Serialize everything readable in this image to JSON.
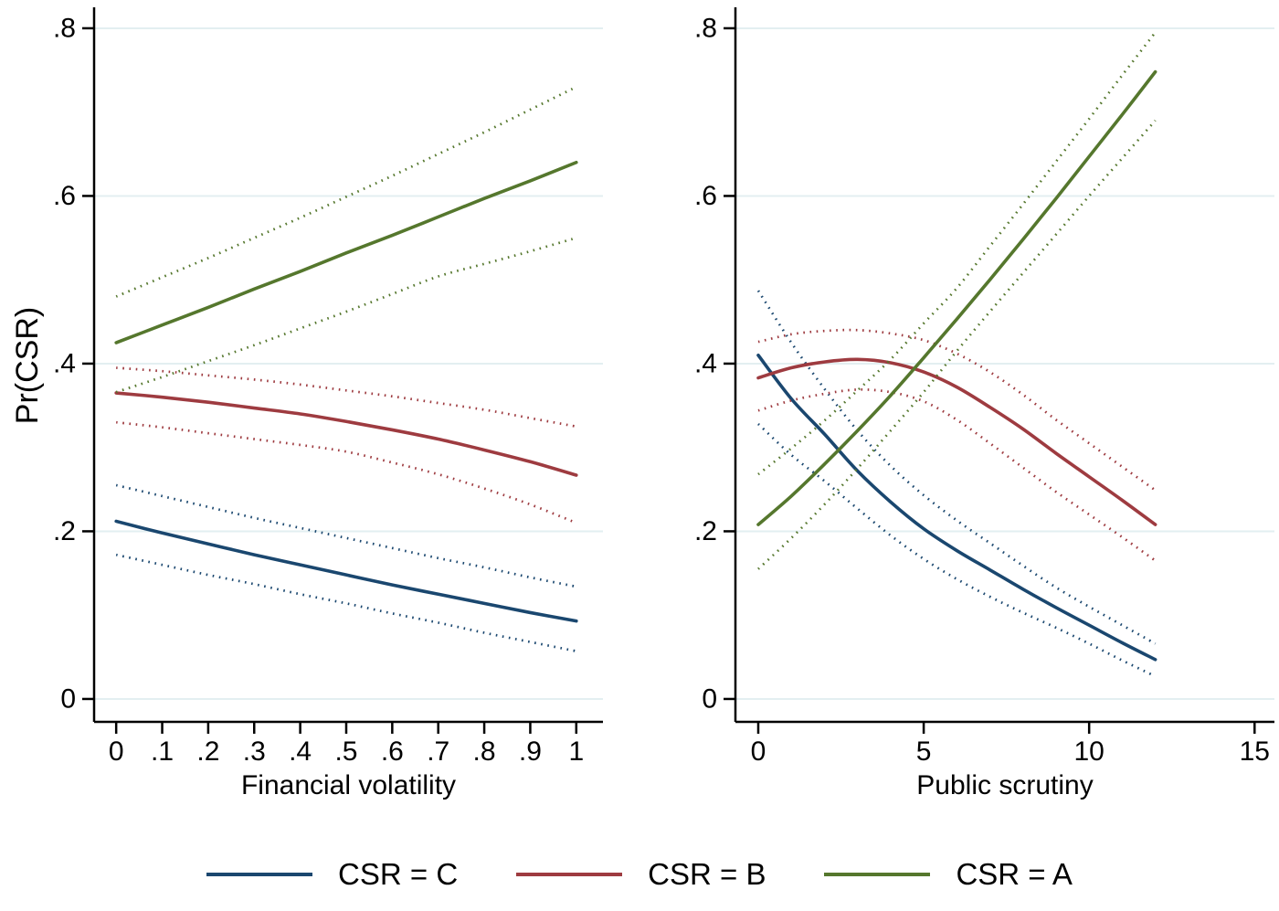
{
  "ylabel": "Pr(CSR)",
  "legend": {
    "position": "bottom-center",
    "items": [
      {
        "label": "CSR = C",
        "color": "#1a476f"
      },
      {
        "label": "CSR = B",
        "color": "#9e3b40"
      },
      {
        "label": "CSR = A",
        "color": "#55772d"
      }
    ]
  },
  "style": {
    "grid_color": "#e3eff1",
    "axis_color": "#000000",
    "background": "#ffffff"
  },
  "chart_data": [
    {
      "type": "line",
      "title": "",
      "xlabel": "Financial volatility",
      "ylabel": "Pr(CSR)",
      "xlim": [
        -0.048,
        1.058
      ],
      "ylim": [
        -0.0273,
        0.825
      ],
      "grid": "horizontal",
      "xticks": {
        "values": [
          0,
          0.1,
          0.2,
          0.3,
          0.4,
          0.5,
          0.6,
          0.7,
          0.8,
          0.9,
          1
        ],
        "labels": [
          "0",
          ".1",
          ".2",
          ".3",
          ".4",
          ".5",
          ".6",
          ".7",
          ".8",
          ".9",
          "1"
        ]
      },
      "yticks": {
        "values": [
          0,
          0.2,
          0.4,
          0.6,
          0.8
        ],
        "labels": [
          "0",
          ".2",
          ".4",
          ".6",
          ".8"
        ]
      },
      "x": [
        0,
        0.1,
        0.2,
        0.3,
        0.4,
        0.5,
        0.6,
        0.7,
        0.8,
        0.9,
        1
      ],
      "series": [
        {
          "name": "CSR = C",
          "color": "#1a476f",
          "y": [
            0.212,
            0.198,
            0.185,
            0.172,
            0.16,
            0.148,
            0.136,
            0.125,
            0.114,
            0.103,
            0.093
          ],
          "ci_upper": [
            0.255,
            0.242,
            0.229,
            0.216,
            0.204,
            0.192,
            0.18,
            0.168,
            0.157,
            0.145,
            0.134
          ],
          "ci_lower": [
            0.172,
            0.16,
            0.148,
            0.137,
            0.125,
            0.114,
            0.102,
            0.091,
            0.079,
            0.068,
            0.057
          ]
        },
        {
          "name": "CSR = B",
          "color": "#9e3b40",
          "y": [
            0.365,
            0.36,
            0.354,
            0.347,
            0.34,
            0.331,
            0.321,
            0.31,
            0.297,
            0.283,
            0.267
          ],
          "ci_upper": [
            0.395,
            0.391,
            0.386,
            0.381,
            0.375,
            0.368,
            0.361,
            0.353,
            0.345,
            0.335,
            0.325
          ],
          "ci_lower": [
            0.33,
            0.324,
            0.317,
            0.31,
            0.303,
            0.295,
            0.282,
            0.268,
            0.251,
            0.232,
            0.21
          ]
        },
        {
          "name": "CSR = A",
          "color": "#55772d",
          "y": [
            0.425,
            0.446,
            0.467,
            0.489,
            0.51,
            0.532,
            0.553,
            0.575,
            0.597,
            0.618,
            0.64
          ],
          "ci_upper": [
            0.48,
            0.503,
            0.526,
            0.55,
            0.574,
            0.599,
            0.624,
            0.65,
            0.676,
            0.703,
            0.73
          ],
          "ci_lower": [
            0.366,
            0.384,
            0.403,
            0.422,
            0.442,
            0.462,
            0.483,
            0.504,
            0.519,
            0.534,
            0.55
          ]
        }
      ]
    },
    {
      "type": "line",
      "title": "",
      "xlabel": "Public scrutiny",
      "ylabel": "Pr(CSR)",
      "xlim": [
        -0.69,
        15.6
      ],
      "ylim": [
        -0.0273,
        0.825
      ],
      "grid": "horizontal",
      "xticks": {
        "values": [
          0,
          5,
          10,
          15
        ],
        "labels": [
          "0",
          "5",
          "10",
          "15"
        ]
      },
      "yticks": {
        "values": [
          0,
          0.2,
          0.4,
          0.6,
          0.8
        ],
        "labels": [
          "0",
          ".2",
          ".4",
          ".6",
          ".8"
        ]
      },
      "x": [
        0,
        1,
        2,
        3,
        4,
        5,
        6,
        7,
        8,
        9,
        10,
        11,
        12
      ],
      "series": [
        {
          "name": "CSR = C",
          "color": "#1a476f",
          "y": [
            0.41,
            0.358,
            0.316,
            0.272,
            0.235,
            0.203,
            0.177,
            0.154,
            0.131,
            0.109,
            0.088,
            0.067,
            0.047
          ],
          "ci_upper": [
            0.487,
            0.425,
            0.37,
            0.32,
            0.278,
            0.243,
            0.213,
            0.186,
            0.159,
            0.133,
            0.11,
            0.088,
            0.066
          ],
          "ci_lower": [
            0.328,
            0.291,
            0.26,
            0.227,
            0.195,
            0.167,
            0.143,
            0.122,
            0.103,
            0.085,
            0.066,
            0.046,
            0.027
          ]
        },
        {
          "name": "CSR = B",
          "color": "#9e3b40",
          "y": [
            0.383,
            0.395,
            0.402,
            0.405,
            0.401,
            0.39,
            0.372,
            0.348,
            0.322,
            0.293,
            0.265,
            0.237,
            0.208
          ],
          "ci_upper": [
            0.426,
            0.435,
            0.439,
            0.44,
            0.436,
            0.428,
            0.412,
            0.39,
            0.363,
            0.333,
            0.305,
            0.277,
            0.249
          ],
          "ci_lower": [
            0.344,
            0.356,
            0.364,
            0.369,
            0.366,
            0.355,
            0.333,
            0.305,
            0.276,
            0.247,
            0.22,
            0.193,
            0.165
          ]
        },
        {
          "name": "CSR = A",
          "color": "#55772d",
          "y": [
            0.208,
            0.242,
            0.28,
            0.32,
            0.362,
            0.407,
            0.453,
            0.5,
            0.548,
            0.597,
            0.647,
            0.697,
            0.748
          ],
          "ci_upper": [
            0.268,
            0.299,
            0.332,
            0.368,
            0.405,
            0.448,
            0.49,
            0.54,
            0.59,
            0.641,
            0.692,
            0.744,
            0.795
          ],
          "ci_lower": [
            0.155,
            0.192,
            0.232,
            0.275,
            0.32,
            0.366,
            0.415,
            0.462,
            0.508,
            0.554,
            0.6,
            0.645,
            0.69
          ]
        }
      ]
    }
  ]
}
